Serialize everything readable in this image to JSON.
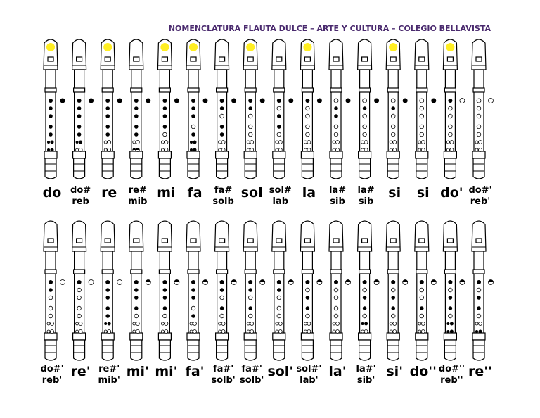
{
  "header": {
    "title": "NOMENCLATURA FLAUTA DULCE – ARTE Y CULTURA – COLEGIO BELLAVISTA"
  },
  "rows": [
    [
      [
        "do"
      ],
      [
        "do#",
        "reb"
      ],
      [
        "re"
      ],
      [
        "re#",
        "mib"
      ],
      [
        "mi"
      ],
      [
        "fa"
      ],
      [
        "fa#",
        "solb"
      ],
      [
        "sol"
      ],
      [
        "sol#",
        "lab"
      ],
      [
        "la"
      ],
      [
        "la#",
        "sib"
      ],
      [
        "la#",
        "sib"
      ],
      [
        "si"
      ],
      [
        "si"
      ],
      [
        "do'"
      ],
      [
        "do#'",
        "reb'"
      ]
    ],
    [
      [
        "do#'",
        "reb'"
      ],
      [
        "re'"
      ],
      [
        "re#'",
        "mib'"
      ],
      [
        "mi'"
      ],
      [
        "mi'"
      ],
      [
        "fa'"
      ],
      [
        "fa#'",
        "solb'"
      ],
      [
        "fa#'",
        "solb'"
      ],
      [
        "sol'"
      ],
      [
        "sol#'",
        "lab'"
      ],
      [
        "la'"
      ],
      [
        "la#'",
        "sib'"
      ],
      [
        "si'"
      ],
      [
        "do''"
      ],
      [
        "do#''",
        "reb''"
      ],
      [
        "re''"
      ]
    ]
  ]
}
